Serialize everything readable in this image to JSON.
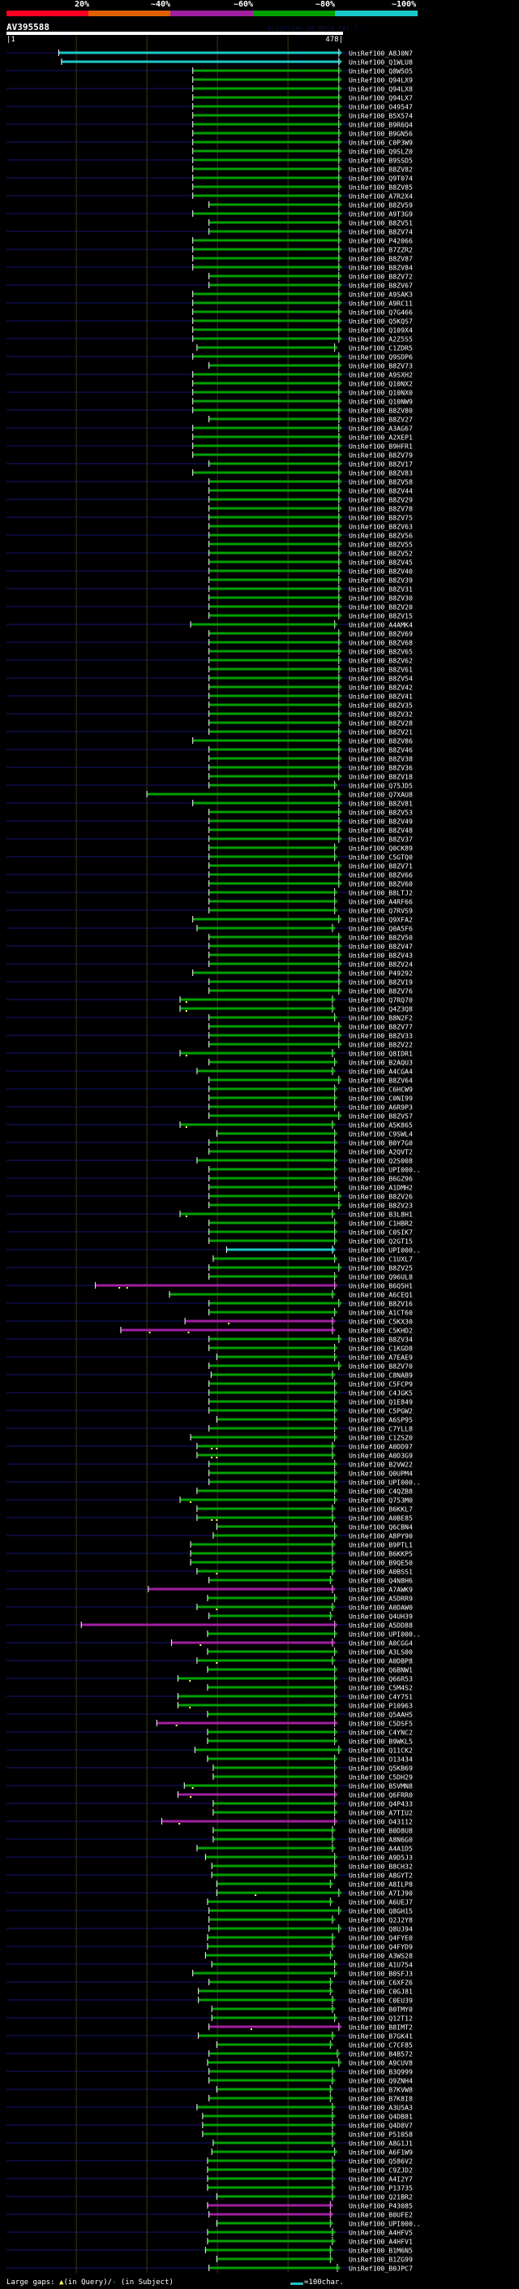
{
  "legend": {
    "percent_labels": [
      "20%",
      "~40%",
      "~60%",
      "~80%",
      "~100%"
    ],
    "percent_colors": [
      "#ff0022",
      "#e06000",
      "#a020a0",
      "#00a000",
      "#1ac8c8"
    ]
  },
  "query": {
    "name": "AV395588",
    "credit": "AlignView.pm Beta rel.7",
    "start_label": "|1",
    "end_label": "478|",
    "length": 478
  },
  "grid_residues": [
    100,
    200,
    300,
    400
  ],
  "colors": {
    "c": "#1ac8c8",
    "g": "#00a000",
    "m": "#a020a0",
    "query_line": "#0a0a38",
    "grid": "#3a3a10",
    "gap_mark": "#ffff60"
  },
  "hits": [
    [
      "UniRef100_A8J0N7",
      75,
      472,
      "c"
    ],
    [
      "UniRef100_Q1WLU8",
      79,
      472,
      "c"
    ],
    [
      "UniRef100_Q8W5O5",
      265,
      472,
      "g"
    ],
    [
      "UniRef100_Q94LX9",
      265,
      472,
      "g"
    ],
    [
      "UniRef100_Q94LX8",
      265,
      472,
      "g"
    ],
    [
      "UniRef100_Q94LX7",
      265,
      472,
      "g"
    ],
    [
      "UniRef100_O49547",
      265,
      472,
      "g"
    ],
    [
      "UniRef100_B5X574",
      265,
      472,
      "g"
    ],
    [
      "UniRef100_B9R6Q4",
      265,
      472,
      "g"
    ],
    [
      "UniRef100_B9GN56",
      265,
      472,
      "g"
    ],
    [
      "UniRef100_C0P3W9",
      265,
      472,
      "g"
    ],
    [
      "UniRef100_Q9SLZ0",
      265,
      472,
      "g"
    ],
    [
      "UniRef100_B9SSD5",
      265,
      472,
      "g"
    ],
    [
      "UniRef100_B8ZV82",
      265,
      472,
      "g"
    ],
    [
      "UniRef100_Q9T074",
      265,
      472,
      "g"
    ],
    [
      "UniRef100_B8ZV85",
      265,
      472,
      "g"
    ],
    [
      "UniRef100_A7R2X4",
      265,
      472,
      "g"
    ],
    [
      "UniRef100_B8ZV59",
      288,
      472,
      "g"
    ],
    [
      "UniRef100_A9T3G9",
      265,
      472,
      "g"
    ],
    [
      "UniRef100_B8ZV51",
      288,
      472,
      "g"
    ],
    [
      "UniRef100_B8ZV74",
      288,
      472,
      "g"
    ],
    [
      "UniRef100_P42066",
      265,
      472,
      "g"
    ],
    [
      "UniRef100_B7ZZR2",
      265,
      472,
      "g"
    ],
    [
      "UniRef100_B8ZV87",
      265,
      472,
      "g"
    ],
    [
      "UniRef100_B8ZV84",
      265,
      472,
      "g"
    ],
    [
      "UniRef100_B8ZV72",
      288,
      472,
      "g"
    ],
    [
      "UniRef100_B8ZV67",
      288,
      472,
      "g"
    ],
    [
      "UniRef100_A9SAK3",
      265,
      472,
      "g"
    ],
    [
      "UniRef100_A9RC11",
      265,
      472,
      "g"
    ],
    [
      "UniRef100_Q7G466",
      265,
      472,
      "g"
    ],
    [
      "UniRef100_Q5KQS7",
      265,
      472,
      "g"
    ],
    [
      "UniRef100_Q109X4",
      265,
      472,
      "g"
    ],
    [
      "UniRef100_A2Z5S5",
      265,
      472,
      "g"
    ],
    [
      "UniRef100_C1ZDR5",
      271,
      466,
      "g"
    ],
    [
      "UniRef100_Q9SDP6",
      265,
      472,
      "g"
    ],
    [
      "UniRef100_B8ZV73",
      288,
      472,
      "g"
    ],
    [
      "UniRef100_A9SXH2",
      265,
      472,
      "g"
    ],
    [
      "UniRef100_Q10NX2",
      265,
      472,
      "g"
    ],
    [
      "UniRef100_Q10NX0",
      265,
      472,
      "g"
    ],
    [
      "UniRef100_Q10NW9",
      265,
      472,
      "g"
    ],
    [
      "UniRef100_B8ZV80",
      265,
      472,
      "g"
    ],
    [
      "UniRef100_B8ZV27",
      288,
      472,
      "g"
    ],
    [
      "UniRef100_A3AG67",
      265,
      472,
      "g"
    ],
    [
      "UniRef100_A2XEP1",
      265,
      472,
      "g"
    ],
    [
      "UniRef100_B9HFR1",
      265,
      472,
      "g"
    ],
    [
      "UniRef100_B8ZV79",
      265,
      472,
      "g"
    ],
    [
      "UniRef100_B8ZV17",
      288,
      472,
      "g"
    ],
    [
      "UniRef100_B8ZV83",
      265,
      472,
      "g"
    ],
    [
      "UniRef100_B8ZV58",
      288,
      472,
      "g"
    ],
    [
      "UniRef100_B8ZV44",
      288,
      472,
      "g"
    ],
    [
      "UniRef100_B8ZV29",
      288,
      472,
      "g"
    ],
    [
      "UniRef100_B8ZV78",
      288,
      472,
      "g"
    ],
    [
      "UniRef100_B8ZV75",
      288,
      472,
      "g"
    ],
    [
      "UniRef100_B8ZV63",
      288,
      472,
      "g"
    ],
    [
      "UniRef100_B8ZV56",
      288,
      472,
      "g"
    ],
    [
      "UniRef100_B8ZV55",
      288,
      472,
      "g"
    ],
    [
      "UniRef100_B8ZV52",
      288,
      472,
      "g"
    ],
    [
      "UniRef100_B8ZV45",
      288,
      472,
      "g"
    ],
    [
      "UniRef100_B8ZV40",
      288,
      472,
      "g"
    ],
    [
      "UniRef100_B8ZV39",
      288,
      472,
      "g"
    ],
    [
      "UniRef100_B8ZV31",
      288,
      472,
      "g"
    ],
    [
      "UniRef100_B8ZV30",
      288,
      472,
      "g"
    ],
    [
      "UniRef100_B8ZV20",
      288,
      472,
      "g"
    ],
    [
      "UniRef100_B8ZV15",
      288,
      472,
      "g"
    ],
    [
      "UniRef100_A4AMK4",
      262,
      466,
      "g"
    ],
    [
      "UniRef100_B8ZV69",
      288,
      472,
      "g"
    ],
    [
      "UniRef100_B8ZV68",
      288,
      472,
      "g"
    ],
    [
      "UniRef100_B8ZV65",
      288,
      472,
      "g"
    ],
    [
      "UniRef100_B8ZV62",
      288,
      472,
      "g"
    ],
    [
      "UniRef100_B8ZV61",
      288,
      472,
      "g"
    ],
    [
      "UniRef100_B8ZV54",
      288,
      472,
      "g"
    ],
    [
      "UniRef100_B8ZV42",
      288,
      472,
      "g"
    ],
    [
      "UniRef100_B8ZV41",
      288,
      472,
      "g"
    ],
    [
      "UniRef100_B8ZV35",
      288,
      472,
      "g"
    ],
    [
      "UniRef100_B8ZV32",
      288,
      472,
      "g"
    ],
    [
      "UniRef100_B8ZV28",
      288,
      472,
      "g"
    ],
    [
      "UniRef100_B8ZV21",
      288,
      472,
      "g"
    ],
    [
      "UniRef100_B8ZV86",
      265,
      472,
      "g"
    ],
    [
      "UniRef100_B8ZV46",
      288,
      472,
      "g"
    ],
    [
      "UniRef100_B8ZV38",
      288,
      472,
      "g"
    ],
    [
      "UniRef100_B8ZV36",
      288,
      472,
      "g"
    ],
    [
      "UniRef100_B8ZV18",
      288,
      472,
      "g"
    ],
    [
      "UniRef100_Q75JD5",
      288,
      466,
      "g"
    ],
    [
      "UniRef100_Q7XAU8",
      200,
      472,
      "g"
    ],
    [
      "UniRef100_B8ZV81",
      265,
      472,
      "g"
    ],
    [
      "UniRef100_B8ZV53",
      288,
      472,
      "g"
    ],
    [
      "UniRef100_B8ZV49",
      288,
      472,
      "g"
    ],
    [
      "UniRef100_B8ZV48",
      288,
      472,
      "g"
    ],
    [
      "UniRef100_B8ZV37",
      288,
      472,
      "g"
    ],
    [
      "UniRef100_Q0CK89",
      288,
      466,
      "g"
    ],
    [
      "UniRef100_C5GTQ0",
      288,
      466,
      "g"
    ],
    [
      "UniRef100_B8ZV71",
      288,
      472,
      "g"
    ],
    [
      "UniRef100_B8ZV66",
      288,
      472,
      "g"
    ],
    [
      "UniRef100_B8ZV60",
      288,
      472,
      "g"
    ],
    [
      "UniRef100_B8LTJ2",
      288,
      466,
      "g"
    ],
    [
      "UniRef100_A4RF66",
      288,
      466,
      "g"
    ],
    [
      "UniRef100_Q7RVS9",
      288,
      466,
      "g"
    ],
    [
      "UniRef100_Q9XFA2",
      265,
      472,
      "g"
    ],
    [
      "UniRef100_Q0A5F6",
      271,
      463,
      "g"
    ],
    [
      "UniRef100_B8ZV50",
      288,
      472,
      "g"
    ],
    [
      "UniRef100_B8ZV47",
      288,
      472,
      "g"
    ],
    [
      "UniRef100_B8ZV43",
      288,
      472,
      "g"
    ],
    [
      "UniRef100_B8ZV24",
      288,
      472,
      "g"
    ],
    [
      "UniRef100_P49292",
      265,
      472,
      "g"
    ],
    [
      "UniRef100_B8ZV19",
      288,
      472,
      "g"
    ],
    [
      "UniRef100_B8ZV76",
      288,
      472,
      "g"
    ],
    [
      "UniRef100_Q7RQ70",
      247,
      463,
      "g",
      [
        256
      ]
    ],
    [
      "UniRef100_Q4Z3Q8",
      247,
      463,
      "g",
      [
        256
      ]
    ],
    [
      "UniRef100_B8N2F2",
      288,
      466,
      "g"
    ],
    [
      "UniRef100_B8ZV77",
      288,
      472,
      "g"
    ],
    [
      "UniRef100_B8ZV33",
      288,
      472,
      "g"
    ],
    [
      "UniRef100_B8ZV22",
      288,
      472,
      "g"
    ],
    [
      "UniRef100_Q8IDR1",
      247,
      463,
      "g",
      [
        256
      ]
    ],
    [
      "UniRef100_B2AQU3",
      288,
      466,
      "g"
    ],
    [
      "UniRef100_A4CGA4",
      271,
      463,
      "g"
    ],
    [
      "UniRef100_B8ZV64",
      288,
      472,
      "g"
    ],
    [
      "UniRef100_C6HCW9",
      288,
      466,
      "g"
    ],
    [
      "UniRef100_C0NI99",
      288,
      466,
      "g"
    ],
    [
      "UniRef100_A6R9P3",
      288,
      466,
      "g"
    ],
    [
      "UniRef100_B8ZV57",
      288,
      472,
      "g"
    ],
    [
      "UniRef100_A5K865",
      247,
      463,
      "g",
      [
        256
      ]
    ],
    [
      "UniRef100_C9SWL4",
      299,
      466,
      "g"
    ],
    [
      "UniRef100_B0Y7G0",
      288,
      466,
      "g"
    ],
    [
      "UniRef100_A2QVT2",
      288,
      466,
      "g"
    ],
    [
      "UniRef100_Q2S008",
      271,
      466,
      "g"
    ],
    [
      "UniRef100_UPI000..",
      288,
      466,
      "g"
    ],
    [
      "UniRef100_B6GZ96",
      288,
      466,
      "g"
    ],
    [
      "UniRef100_A1DMH2",
      288,
      466,
      "g"
    ],
    [
      "UniRef100_B8ZV26",
      288,
      472,
      "g"
    ],
    [
      "UniRef100_B8ZV23",
      288,
      472,
      "g"
    ],
    [
      "UniRef100_B3L8H1",
      247,
      463,
      "g",
      [
        256
      ]
    ],
    [
      "UniRef100_C1HBR2",
      288,
      466,
      "g"
    ],
    [
      "UniRef100_C0SIK7",
      288,
      466,
      "g"
    ],
    [
      "UniRef100_Q2GT15",
      288,
      466,
      "g"
    ],
    [
      "UniRef100_UPI000..",
      313,
      463,
      "c"
    ],
    [
      "UniRef100_C1UXL7",
      294,
      466,
      "g"
    ],
    [
      "UniRef100_B8ZV25",
      288,
      472,
      "g"
    ],
    [
      "UniRef100_Q96UL8",
      288,
      466,
      "g"
    ],
    [
      "UniRef100_B6Q5H1",
      127,
      466,
      "m",
      [
        161,
        172
      ]
    ],
    [
      "UniRef100_A6CEQ1",
      232,
      463,
      "g"
    ],
    [
      "UniRef100_B8ZV16",
      288,
      472,
      "g"
    ],
    [
      "UniRef100_A1CT60",
      288,
      466,
      "g"
    ],
    [
      "UniRef100_C5KX30",
      254,
      463,
      "m",
      [
        316
      ]
    ],
    [
      "UniRef100_C5KHD2",
      163,
      463,
      "m",
      [
        204,
        259
      ]
    ],
    [
      "UniRef100_B8ZV34",
      288,
      472,
      "g"
    ],
    [
      "UniRef100_C1KGD8",
      288,
      466,
      "g"
    ],
    [
      "UniRef100_A7EAE9",
      299,
      466,
      "g"
    ],
    [
      "UniRef100_B8ZV70",
      288,
      472,
      "g"
    ],
    [
      "UniRef100_C8NAB9",
      291,
      463,
      "g"
    ],
    [
      "UniRef100_C5FCP9",
      288,
      466,
      "g"
    ],
    [
      "UniRef100_C4JGK5",
      288,
      466,
      "g"
    ],
    [
      "UniRef100_Q1E849",
      288,
      466,
      "g"
    ],
    [
      "UniRef100_C5PGW2",
      288,
      466,
      "g"
    ],
    [
      "UniRef100_A6SP95",
      299,
      466,
      "g"
    ],
    [
      "UniRef100_C7YLL8",
      288,
      466,
      "g"
    ],
    [
      "UniRef100_C1ZSZ0",
      262,
      466,
      "g"
    ],
    [
      "UniRef100_A0DD97",
      271,
      463,
      "g",
      [
        292,
        299
      ]
    ],
    [
      "UniRef100_A0D3G9",
      271,
      463,
      "g",
      [
        292,
        299
      ]
    ],
    [
      "UniRef100_B2VW22",
      288,
      466,
      "g"
    ],
    [
      "UniRef100_Q0UPM4",
      288,
      466,
      "g"
    ],
    [
      "UniRef100_UPI000..",
      288,
      466,
      "g"
    ],
    [
      "UniRef100_C4QZB8",
      271,
      466,
      "g"
    ],
    [
      "UniRef100_Q753M0",
      247,
      466,
      "g",
      [
        262
      ]
    ],
    [
      "UniRef100_B6KKL7",
      271,
      463,
      "g"
    ],
    [
      "UniRef100_A0BE85",
      271,
      463,
      "g",
      [
        292,
        299
      ]
    ],
    [
      "UniRef100_Q6CBN4",
      299,
      466,
      "g"
    ],
    [
      "UniRef100_A8PY90",
      294,
      466,
      "g"
    ],
    [
      "UniRef100_B9PTL1",
      262,
      463,
      "g"
    ],
    [
      "UniRef100_B6KKP5",
      262,
      463,
      "g"
    ],
    [
      "UniRef100_B9QE50",
      262,
      463,
      "g"
    ],
    [
      "UniRef100_A0BSS1",
      271,
      463,
      "g",
      [
        299
      ]
    ],
    [
      "UniRef100_Q4N8H6",
      288,
      460,
      "g"
    ],
    [
      "UniRef100_A7AWK9",
      202,
      463,
      "m"
    ],
    [
      "UniRef100_A5DRR9",
      286,
      466,
      "g"
    ],
    [
      "UniRef100_A0DAW0",
      271,
      463,
      "g",
      [
        299
      ]
    ],
    [
      "UniRef100_Q4UH39",
      288,
      460,
      "g"
    ],
    [
      "UniRef100_A5DD88",
      107,
      466,
      "m"
    ],
    [
      "UniRef100_UPI000..",
      286,
      466,
      "g"
    ],
    [
      "UniRef100_A0CGG4",
      235,
      463,
      "m",
      [
        276
      ]
    ],
    [
      "UniRef100_A3LS00",
      286,
      466,
      "g"
    ],
    [
      "UniRef100_A0DBP8",
      271,
      463,
      "g",
      [
        299
      ]
    ],
    [
      "UniRef100_Q6BNW1",
      286,
      466,
      "g"
    ],
    [
      "UniRef100_Q66R53",
      244,
      466,
      "g",
      [
        261
      ]
    ],
    [
      "UniRef100_C5M4S2",
      286,
      466,
      "g"
    ],
    [
      "UniRef100_C4Y751",
      244,
      466,
      "g"
    ],
    [
      "UniRef100_P10963",
      244,
      466,
      "g",
      [
        261
      ]
    ],
    [
      "UniRef100_Q5AAH5",
      286,
      466,
      "g"
    ],
    [
      "UniRef100_C5DSF5",
      214,
      466,
      "m",
      [
        242
      ]
    ],
    [
      "UniRef100_C4YNC2",
      286,
      466,
      "g"
    ],
    [
      "UniRef100_B9WKL5",
      286,
      466,
      "g"
    ],
    [
      "UniRef100_Q11CK2",
      268,
      472,
      "g"
    ],
    [
      "UniRef100_O13434",
      286,
      466,
      "g"
    ],
    [
      "UniRef100_Q5KB69",
      294,
      466,
      "g"
    ],
    [
      "UniRef100_C5DH29",
      294,
      466,
      "g"
    ],
    [
      "UniRef100_B5VMN8",
      253,
      466,
      "g",
      [
        265
      ]
    ],
    [
      "UniRef100_Q6FRR0",
      244,
      466,
      "m",
      [
        262
      ]
    ],
    [
      "UniRef100_Q4P433",
      294,
      466,
      "g"
    ],
    [
      "UniRef100_A7TIU2",
      294,
      466,
      "g"
    ],
    [
      "UniRef100_O43112",
      221,
      466,
      "m",
      [
        246
      ]
    ],
    [
      "UniRef100_B0D8U8",
      294,
      463,
      "g"
    ],
    [
      "UniRef100_A8N6G0",
      294,
      463,
      "g"
    ],
    [
      "UniRef100_A4A1D5",
      271,
      463,
      "g"
    ],
    [
      "UniRef100_A9D5J3",
      283,
      466,
      "g"
    ],
    [
      "UniRef100_B8CH32",
      292,
      466,
      "g"
    ],
    [
      "UniRef100_A8GYT2",
      292,
      466,
      "g"
    ],
    [
      "UniRef100_A8ILP8",
      299,
      460,
      "g"
    ],
    [
      "UniRef100_A7IJ90",
      299,
      472,
      "g",
      [
        354
      ]
    ],
    [
      "UniRef100_A6UEJ7",
      286,
      460,
      "g"
    ],
    [
      "UniRef100_Q8GH15",
      288,
      472,
      "g"
    ],
    [
      "UniRef100_Q2J2Y8",
      288,
      463,
      "g"
    ],
    [
      "UniRef100_Q8UJ94",
      288,
      472,
      "g"
    ],
    [
      "UniRef100_Q4FYE0",
      286,
      463,
      "g"
    ],
    [
      "UniRef100_Q4FYD9",
      286,
      463,
      "g"
    ],
    [
      "UniRef100_A3WS28",
      283,
      460,
      "g"
    ],
    [
      "UniRef100_A1U754",
      292,
      466,
      "g"
    ],
    [
      "UniRef100_B0SFJ3",
      265,
      466,
      "g"
    ],
    [
      "UniRef100_C6XFZ6",
      288,
      460,
      "g"
    ],
    [
      "UniRef100_C0GJ81",
      273,
      460,
      "g"
    ],
    [
      "UniRef100_C0EU39",
      273,
      463,
      "g"
    ],
    [
      "UniRef100_B0TMY0",
      292,
      463,
      "g"
    ],
    [
      "UniRef100_Q12T12",
      292,
      466,
      "g"
    ],
    [
      "UniRef100_B8IMT2",
      288,
      472,
      "m",
      [
        348
      ]
    ],
    [
      "UniRef100_B7GK41",
      273,
      463,
      "g"
    ],
    [
      "UniRef100_C7CF85",
      299,
      460,
      "g"
    ],
    [
      "UniRef100_B4B572",
      288,
      470,
      "g"
    ],
    [
      "UniRef100_A9CUV8",
      286,
      472,
      "g"
    ],
    [
      "UniRef100_B3Q999",
      288,
      463,
      "g"
    ],
    [
      "UniRef100_Q9ZNH4",
      288,
      463,
      "g"
    ],
    [
      "UniRef100_B7KVW8",
      299,
      460,
      "g"
    ],
    [
      "UniRef100_B7K8I8",
      288,
      460,
      "g"
    ],
    [
      "UniRef100_A3U5A3",
      271,
      463,
      "g"
    ],
    [
      "UniRef100_Q4DB81",
      279,
      463,
      "g"
    ],
    [
      "UniRef100_Q4D8V7",
      279,
      463,
      "g"
    ],
    [
      "UniRef100_P51058",
      279,
      463,
      "g"
    ],
    [
      "UniRef100_A8G1J1",
      294,
      463,
      "g"
    ],
    [
      "UniRef100_A6F1W9",
      292,
      466,
      "g"
    ],
    [
      "UniRef100_Q586V2",
      286,
      463,
      "g"
    ],
    [
      "UniRef100_C9ZJD2",
      286,
      463,
      "g"
    ],
    [
      "UniRef100_A4I2Y7",
      286,
      463,
      "g"
    ],
    [
      "UniRef100_P13735",
      286,
      463,
      "g"
    ],
    [
      "UniRef100_Q21BR2",
      299,
      463,
      "g"
    ],
    [
      "UniRef100_P43085",
      286,
      460,
      "m"
    ],
    [
      "UniRef100_B0UFE2",
      288,
      460,
      "m"
    ],
    [
      "UniRef100_UPI000..",
      299,
      460,
      "g"
    ],
    [
      "UniRef100_A4HFV5",
      286,
      463,
      "g"
    ],
    [
      "UniRef100_A4HFV1",
      286,
      463,
      "g"
    ],
    [
      "UniRef100_B1M6N5",
      283,
      460,
      "g"
    ],
    [
      "UniRef100_B1ZG99",
      299,
      460,
      "g"
    ],
    [
      "UniRef100_B0JPC7",
      288,
      470,
      "g"
    ]
  ],
  "footer": {
    "large_gaps_label": "Large gaps: ",
    "query_gap_symbol": "▲",
    "query_gap_text": "(in Query)/",
    "subject_gap_symbol": "-",
    "subject_gap_text": " (in Subject)",
    "scale_label": "=100char."
  }
}
